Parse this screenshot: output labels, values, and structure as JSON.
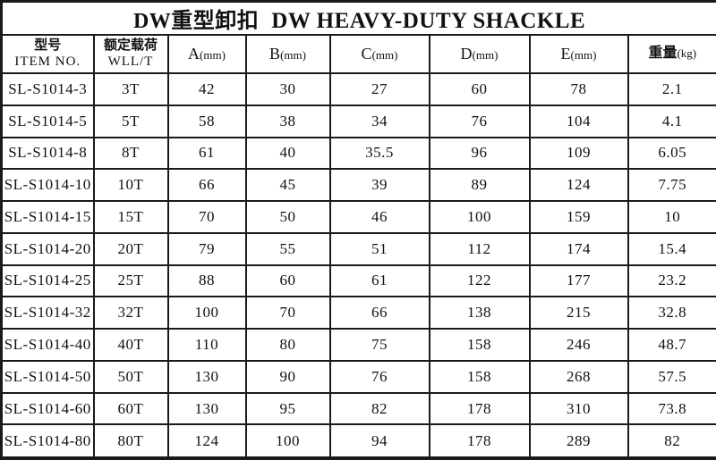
{
  "title": {
    "zh": "DW重型卸扣",
    "en": "DW HEAVY-DUTY SHACKLE"
  },
  "colors": {
    "border": "#1a1a1a",
    "text": "#111111",
    "background": "#ffffff"
  },
  "table": {
    "headers": [
      {
        "line1": "型号",
        "line2": "ITEM NO."
      },
      {
        "line1": "额定载荷",
        "line2": "WLL/T"
      },
      {
        "main": "A",
        "unit": "(mm)"
      },
      {
        "main": "B",
        "unit": "(mm)"
      },
      {
        "main": "C",
        "unit": "(mm)"
      },
      {
        "main": "D",
        "unit": "(mm)"
      },
      {
        "main": "E",
        "unit": "(mm)"
      },
      {
        "main": "重量",
        "unit": "(kg)"
      }
    ],
    "rows": [
      [
        "SL-S1014-3",
        "3T",
        "42",
        "30",
        "27",
        "60",
        "78",
        "2.1"
      ],
      [
        "SL-S1014-5",
        "5T",
        "58",
        "38",
        "34",
        "76",
        "104",
        "4.1"
      ],
      [
        "SL-S1014-8",
        "8T",
        "61",
        "40",
        "35.5",
        "96",
        "109",
        "6.05"
      ],
      [
        "SL-S1014-10",
        "10T",
        "66",
        "45",
        "39",
        "89",
        "124",
        "7.75"
      ],
      [
        "SL-S1014-15",
        "15T",
        "70",
        "50",
        "46",
        "100",
        "159",
        "10"
      ],
      [
        "SL-S1014-20",
        "20T",
        "79",
        "55",
        "51",
        "112",
        "174",
        "15.4"
      ],
      [
        "SL-S1014-25",
        "25T",
        "88",
        "60",
        "61",
        "122",
        "177",
        "23.2"
      ],
      [
        "SL-S1014-32",
        "32T",
        "100",
        "70",
        "66",
        "138",
        "215",
        "32.8"
      ],
      [
        "SL-S1014-40",
        "40T",
        "110",
        "80",
        "75",
        "158",
        "246",
        "48.7"
      ],
      [
        "SL-S1014-50",
        "50T",
        "130",
        "90",
        "76",
        "158",
        "268",
        "57.5"
      ],
      [
        "SL-S1014-60",
        "60T",
        "130",
        "95",
        "82",
        "178",
        "310",
        "73.8"
      ],
      [
        "SL-S1014-80",
        "80T",
        "124",
        "100",
        "94",
        "178",
        "289",
        "82"
      ]
    ]
  }
}
